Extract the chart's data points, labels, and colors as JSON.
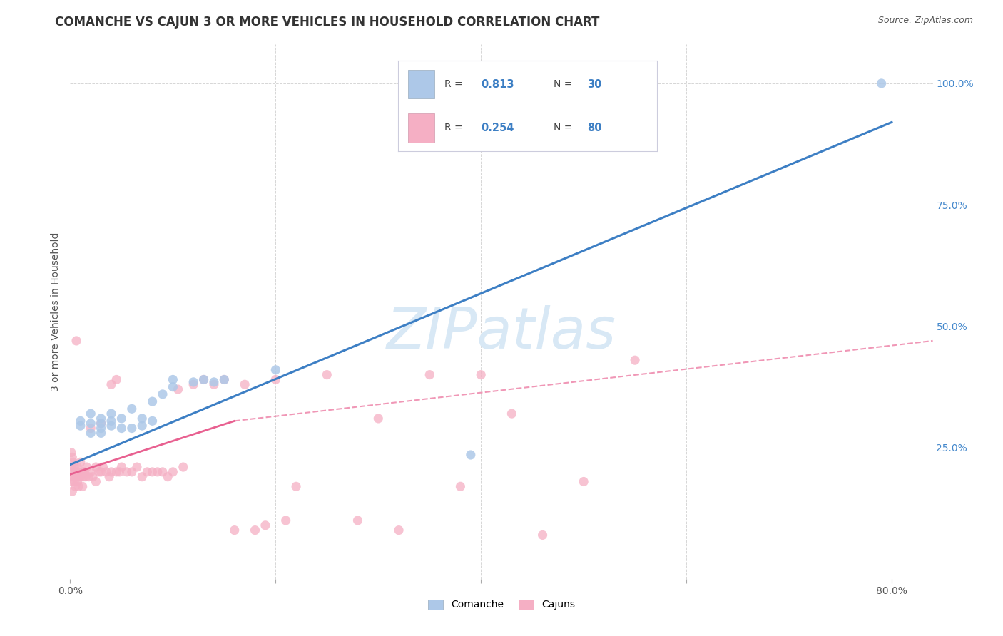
{
  "title": "COMANCHE VS CAJUN 3 OR MORE VEHICLES IN HOUSEHOLD CORRELATION CHART",
  "source": "Source: ZipAtlas.com",
  "ylabel": "3 or more Vehicles in Household",
  "xlim": [
    0.0,
    0.84
  ],
  "ylim": [
    -0.02,
    1.08
  ],
  "xtick_positions": [
    0.0,
    0.2,
    0.4,
    0.6,
    0.8
  ],
  "xticklabels": [
    "0.0%",
    "",
    "",
    "",
    "80.0%"
  ],
  "ytick_positions": [
    0.0,
    0.25,
    0.5,
    0.75,
    1.0
  ],
  "right_yticklabels": [
    "",
    "25.0%",
    "50.0%",
    "75.0%",
    "100.0%"
  ],
  "comanche_color": "#adc8e8",
  "cajun_color": "#f5afc4",
  "comanche_line_color": "#3d7fc4",
  "cajun_line_color": "#e86090",
  "background_color": "#ffffff",
  "grid_color": "#cccccc",
  "watermark_text_color": "#d8e8f5",
  "title_fontsize": 12,
  "source_fontsize": 9,
  "tick_fontsize": 10,
  "right_tick_color": "#4488cc",
  "comanche_x": [
    0.01,
    0.01,
    0.02,
    0.02,
    0.02,
    0.03,
    0.03,
    0.03,
    0.03,
    0.04,
    0.04,
    0.04,
    0.05,
    0.05,
    0.06,
    0.06,
    0.07,
    0.07,
    0.08,
    0.08,
    0.09,
    0.1,
    0.1,
    0.12,
    0.13,
    0.14,
    0.15,
    0.2,
    0.39,
    0.79
  ],
  "comanche_y": [
    0.295,
    0.305,
    0.28,
    0.3,
    0.32,
    0.28,
    0.29,
    0.3,
    0.31,
    0.295,
    0.305,
    0.32,
    0.29,
    0.31,
    0.29,
    0.33,
    0.295,
    0.31,
    0.305,
    0.345,
    0.36,
    0.375,
    0.39,
    0.385,
    0.39,
    0.385,
    0.39,
    0.41,
    0.235,
    1.0
  ],
  "cajun_x": [
    0.001,
    0.001,
    0.001,
    0.002,
    0.002,
    0.002,
    0.002,
    0.003,
    0.003,
    0.004,
    0.004,
    0.005,
    0.005,
    0.006,
    0.006,
    0.007,
    0.007,
    0.008,
    0.008,
    0.009,
    0.01,
    0.01,
    0.012,
    0.012,
    0.013,
    0.014,
    0.015,
    0.016,
    0.018,
    0.02,
    0.02,
    0.022,
    0.025,
    0.025,
    0.028,
    0.03,
    0.03,
    0.032,
    0.035,
    0.038,
    0.04,
    0.04,
    0.045,
    0.045,
    0.048,
    0.05,
    0.055,
    0.06,
    0.065,
    0.07,
    0.075,
    0.08,
    0.085,
    0.09,
    0.095,
    0.1,
    0.105,
    0.11,
    0.12,
    0.13,
    0.14,
    0.15,
    0.16,
    0.17,
    0.18,
    0.19,
    0.2,
    0.21,
    0.22,
    0.25,
    0.28,
    0.3,
    0.32,
    0.35,
    0.38,
    0.4,
    0.43,
    0.46,
    0.5,
    0.55
  ],
  "cajun_y": [
    0.24,
    0.21,
    0.19,
    0.23,
    0.2,
    0.18,
    0.16,
    0.22,
    0.19,
    0.21,
    0.18,
    0.2,
    0.17,
    0.19,
    0.47,
    0.21,
    0.18,
    0.2,
    0.17,
    0.19,
    0.19,
    0.22,
    0.2,
    0.17,
    0.19,
    0.2,
    0.19,
    0.21,
    0.19,
    0.2,
    0.29,
    0.19,
    0.21,
    0.18,
    0.2,
    0.3,
    0.2,
    0.21,
    0.2,
    0.19,
    0.2,
    0.38,
    0.2,
    0.39,
    0.2,
    0.21,
    0.2,
    0.2,
    0.21,
    0.19,
    0.2,
    0.2,
    0.2,
    0.2,
    0.19,
    0.2,
    0.37,
    0.21,
    0.38,
    0.39,
    0.38,
    0.39,
    0.08,
    0.38,
    0.08,
    0.09,
    0.39,
    0.1,
    0.17,
    0.4,
    0.1,
    0.31,
    0.08,
    0.4,
    0.17,
    0.4,
    0.32,
    0.07,
    0.18,
    0.43
  ],
  "comanche_trend": [
    0.0,
    0.8,
    0.215,
    0.92
  ],
  "cajun_solid_trend": [
    0.0,
    0.16,
    0.195,
    0.305
  ],
  "cajun_dashed_trend": [
    0.16,
    0.84,
    0.305,
    0.47
  ]
}
